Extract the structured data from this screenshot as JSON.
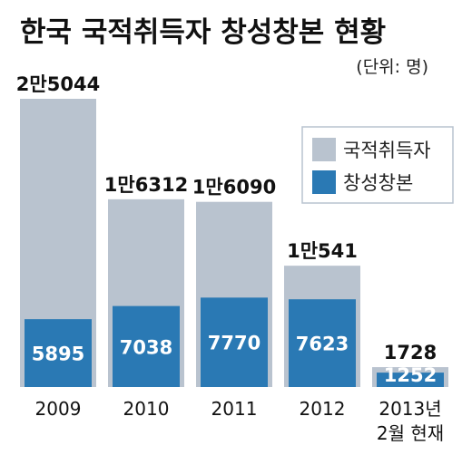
{
  "chart_data": {
    "type": "bar",
    "title": "한국 국적취득자 창성창본 현황",
    "unit": "(단위: 명)",
    "categories": [
      [
        "2009"
      ],
      [
        "2010"
      ],
      [
        "2011"
      ],
      [
        "2012"
      ],
      [
        "2013년",
        "2월 현재"
      ]
    ],
    "series": [
      {
        "name": "국적취득자",
        "color": "#b9c3cf",
        "values": [
          25044,
          16312,
          16090,
          10541,
          1728
        ],
        "labels": [
          "2만5044",
          "1만6312",
          "1만6090",
          "1만541",
          "1728"
        ]
      },
      {
        "name": "창성창본",
        "color": "#2a79b4",
        "values": [
          5895,
          7038,
          7770,
          7623,
          1252
        ],
        "labels": [
          "5895",
          "7038",
          "7770",
          "7623",
          "1252"
        ]
      }
    ],
    "legend_position": "top-right",
    "ylim": [
      0,
      25044
    ],
    "grid": false
  }
}
